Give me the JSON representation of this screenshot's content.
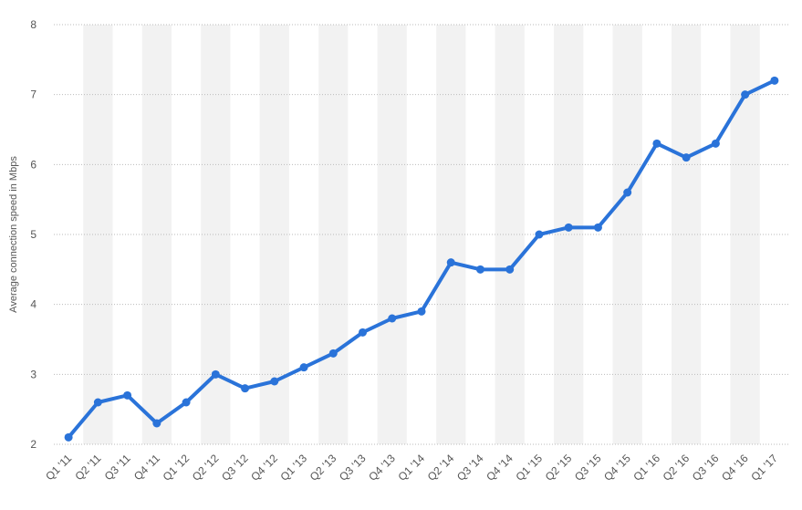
{
  "chart_data": {
    "type": "line",
    "y_label": "Average connection speed in Mbps",
    "categories": [
      "Q1 '11",
      "Q2 '11",
      "Q3 '11",
      "Q4 '11",
      "Q1 '12",
      "Q2 '12",
      "Q3 '12",
      "Q4 '12",
      "Q1 '13",
      "Q2 '13",
      "Q3 '13",
      "Q4 '13",
      "Q1 '14",
      "Q2 '14",
      "Q3 '14",
      "Q4 '14",
      "Q1 '15",
      "Q2 '15",
      "Q3 '15",
      "Q4 '15",
      "Q1 '16",
      "Q2 '16",
      "Q3 '16",
      "Q4 '16",
      "Q1 '17"
    ],
    "values": [
      2.1,
      2.6,
      2.7,
      2.3,
      2.6,
      3.0,
      2.8,
      2.9,
      3.1,
      3.3,
      3.6,
      3.8,
      3.9,
      4.6,
      4.5,
      4.5,
      5.0,
      5.1,
      5.1,
      5.6,
      6.3,
      6.1,
      6.3,
      7.0,
      7.2
    ],
    "color": "#2a73d9",
    "ylim": [
      2,
      8
    ],
    "yticks": [
      2,
      3,
      4,
      5,
      6,
      7,
      8
    ],
    "grid": true
  }
}
